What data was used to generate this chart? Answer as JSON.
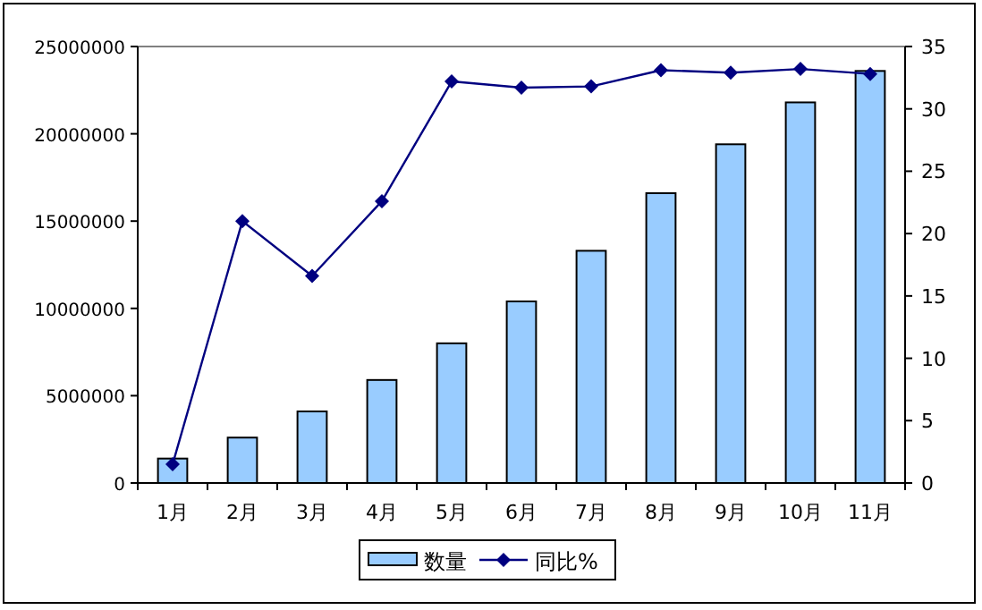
{
  "chart_data": {
    "type": "bar",
    "categories": [
      "1月",
      "2月",
      "3月",
      "4月",
      "5月",
      "6月",
      "7月",
      "8月",
      "9月",
      "10月",
      "11月"
    ],
    "series": [
      {
        "name": "数量",
        "color": "#99ccff",
        "values": [
          1400000,
          2600000,
          4100000,
          5900000,
          8000000,
          10400000,
          13300000,
          16600000,
          19400000,
          21800000,
          23600000
        ]
      },
      {
        "name": "同比%",
        "type": "line",
        "axis": "y2",
        "color": "#000080",
        "values": [
          1.5,
          21.0,
          16.6,
          22.6,
          32.2,
          31.7,
          31.8,
          33.1,
          32.9,
          33.2,
          32.8
        ]
      }
    ],
    "ylim": [
      0,
      25000000
    ],
    "yticks": [
      0,
      5000000,
      10000000,
      15000000,
      20000000,
      25000000
    ],
    "y2lim": [
      0,
      35
    ],
    "y2ticks": [
      0,
      5,
      10,
      15,
      20,
      25,
      30,
      35
    ],
    "marker": "diamond",
    "line_style": "solid",
    "grid": false,
    "legend": "bottom"
  }
}
